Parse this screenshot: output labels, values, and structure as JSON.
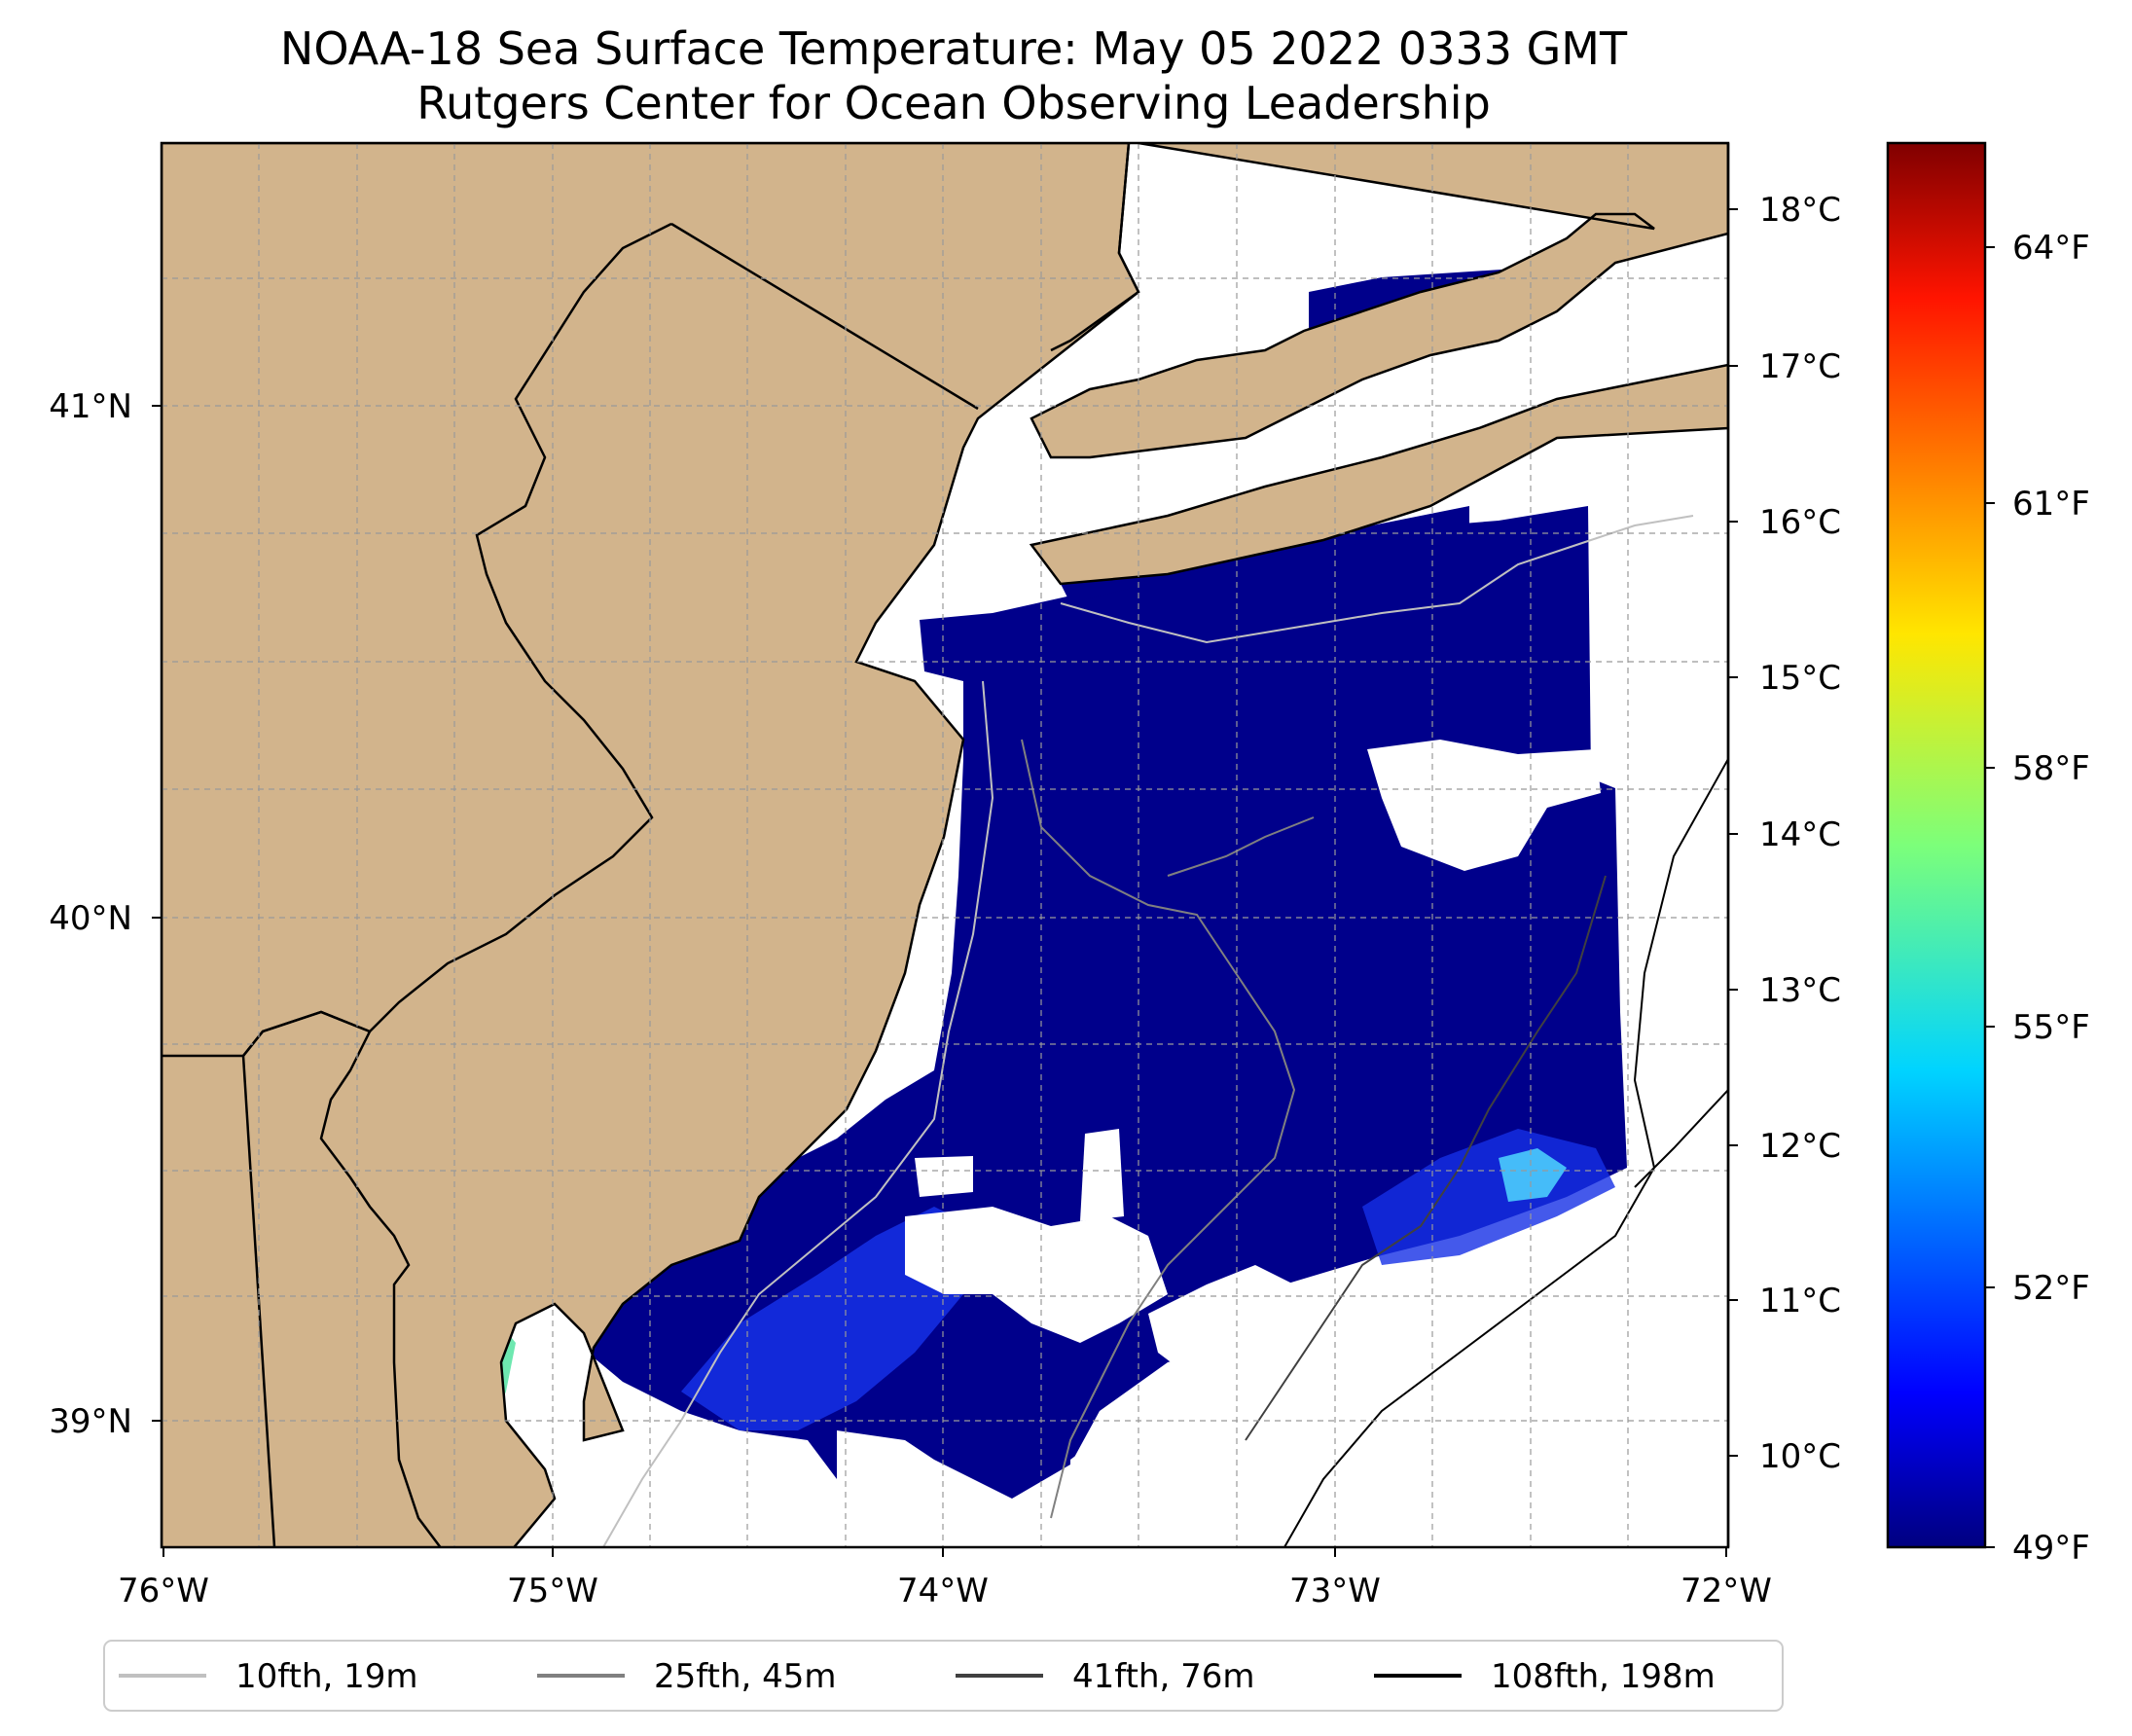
{
  "title": {
    "line1": "NOAA-18 Sea Surface Temperature: May 05 2022 0333 GMT",
    "line2": "Rutgers Center for Ocean Observing Leadership"
  },
  "map": {
    "lon_labels": [
      "76°W",
      "75°W",
      "74°W",
      "73°W",
      "72°W"
    ],
    "lat_labels": [
      "41°N",
      "40°N",
      "39°N"
    ],
    "land_color": "#d2b48c",
    "water_no_data_color": "#ffffff",
    "cold_water_color": "#00008b",
    "gridlines": "dashed"
  },
  "colorbar": {
    "celsius_labels": [
      "18°C",
      "17°C",
      "16°C",
      "15°C",
      "14°C",
      "13°C",
      "12°C",
      "11°C",
      "10°C"
    ],
    "fahrenheit_labels": [
      "64°F",
      "61°F",
      "58°F",
      "55°F",
      "52°F",
      "49°F"
    ],
    "colormap": "jet"
  },
  "legend": {
    "items": [
      {
        "label": "10fth, 19m",
        "color": "#c0c0c0"
      },
      {
        "label": "25fth, 45m",
        "color": "#808080"
      },
      {
        "label": "41fth, 76m",
        "color": "#404040"
      },
      {
        "label": "108fth, 198m",
        "color": "#000000"
      }
    ]
  }
}
